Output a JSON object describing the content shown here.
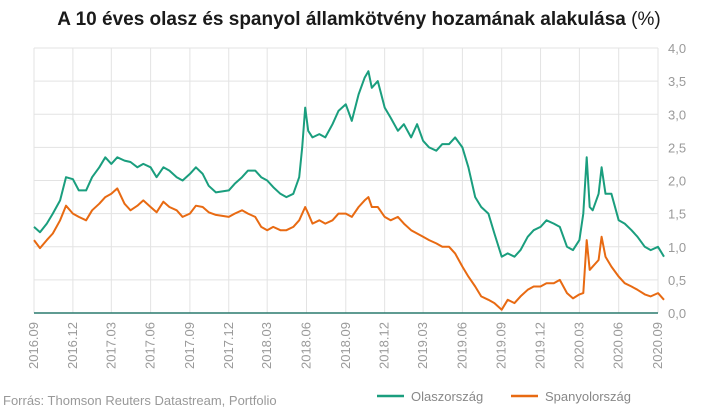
{
  "chart_data": {
    "type": "line",
    "title": "A 10 éves olasz és spanyol államkötvény hozamának alakulása",
    "title_unit": "(%)",
    "source": "Forrás: Thomson Reuters Datastream, Portfolio",
    "x_start": "2016.09",
    "x_end": "2020.09",
    "x_ticks": [
      "2016.09",
      "2016.12",
      "2017.03",
      "2017.06",
      "2017.09",
      "2017.12",
      "2018.03",
      "2018.06",
      "2018.09",
      "2018.12",
      "2019.03",
      "2019.06",
      "2019.09",
      "2019.12",
      "2020.03",
      "2020.06",
      "2020.09"
    ],
    "y_ticks": [
      "0,0",
      "0,5",
      "1,0",
      "1,5",
      "2,0",
      "2,5",
      "3,0",
      "3,5",
      "4,0"
    ],
    "ylim": [
      0,
      4
    ],
    "y_axis_position": "right",
    "grid": true,
    "legend_position": "bottom-right",
    "series": [
      {
        "name": "Olaszország",
        "color": "#1a9e7e",
        "points": [
          [
            "2016-09-01",
            1.3
          ],
          [
            "2016-09-15",
            1.22
          ],
          [
            "2016-10-01",
            1.35
          ],
          [
            "2016-10-15",
            1.5
          ],
          [
            "2016-11-01",
            1.7
          ],
          [
            "2016-11-15",
            2.05
          ],
          [
            "2016-12-01",
            2.02
          ],
          [
            "2016-12-15",
            1.85
          ],
          [
            "2017-01-01",
            1.85
          ],
          [
            "2017-01-15",
            2.05
          ],
          [
            "2017-02-01",
            2.2
          ],
          [
            "2017-02-15",
            2.35
          ],
          [
            "2017-03-01",
            2.25
          ],
          [
            "2017-03-15",
            2.35
          ],
          [
            "2017-04-01",
            2.3
          ],
          [
            "2017-04-15",
            2.28
          ],
          [
            "2017-05-01",
            2.2
          ],
          [
            "2017-05-15",
            2.25
          ],
          [
            "2017-06-01",
            2.2
          ],
          [
            "2017-06-15",
            2.05
          ],
          [
            "2017-07-01",
            2.2
          ],
          [
            "2017-07-15",
            2.15
          ],
          [
            "2017-08-01",
            2.05
          ],
          [
            "2017-08-15",
            2.0
          ],
          [
            "2017-09-01",
            2.1
          ],
          [
            "2017-09-15",
            2.2
          ],
          [
            "2017-10-01",
            2.1
          ],
          [
            "2017-10-15",
            1.92
          ],
          [
            "2017-11-01",
            1.82
          ],
          [
            "2017-12-01",
            1.85
          ],
          [
            "2017-12-15",
            1.95
          ],
          [
            "2018-01-01",
            2.05
          ],
          [
            "2018-01-15",
            2.15
          ],
          [
            "2018-02-01",
            2.15
          ],
          [
            "2018-02-15",
            2.05
          ],
          [
            "2018-03-01",
            2.0
          ],
          [
            "2018-03-15",
            1.9
          ],
          [
            "2018-04-01",
            1.8
          ],
          [
            "2018-04-15",
            1.75
          ],
          [
            "2018-05-01",
            1.8
          ],
          [
            "2018-05-15",
            2.05
          ],
          [
            "2018-05-22",
            2.5
          ],
          [
            "2018-05-29",
            3.1
          ],
          [
            "2018-06-05",
            2.75
          ],
          [
            "2018-06-15",
            2.65
          ],
          [
            "2018-07-01",
            2.7
          ],
          [
            "2018-07-15",
            2.65
          ],
          [
            "2018-08-01",
            2.85
          ],
          [
            "2018-08-15",
            3.05
          ],
          [
            "2018-09-01",
            3.15
          ],
          [
            "2018-09-15",
            2.9
          ],
          [
            "2018-10-01",
            3.3
          ],
          [
            "2018-10-15",
            3.55
          ],
          [
            "2018-10-24",
            3.65
          ],
          [
            "2018-11-01",
            3.4
          ],
          [
            "2018-11-15",
            3.5
          ],
          [
            "2018-12-01",
            3.1
          ],
          [
            "2018-12-15",
            2.95
          ],
          [
            "2019-01-01",
            2.75
          ],
          [
            "2019-01-15",
            2.85
          ],
          [
            "2019-02-01",
            2.65
          ],
          [
            "2019-02-15",
            2.85
          ],
          [
            "2019-03-01",
            2.6
          ],
          [
            "2019-03-15",
            2.5
          ],
          [
            "2019-04-01",
            2.45
          ],
          [
            "2019-04-15",
            2.55
          ],
          [
            "2019-05-01",
            2.55
          ],
          [
            "2019-05-15",
            2.65
          ],
          [
            "2019-06-01",
            2.5
          ],
          [
            "2019-06-15",
            2.2
          ],
          [
            "2019-07-01",
            1.75
          ],
          [
            "2019-07-15",
            1.6
          ],
          [
            "2019-08-01",
            1.5
          ],
          [
            "2019-08-15",
            1.2
          ],
          [
            "2019-09-01",
            0.85
          ],
          [
            "2019-09-15",
            0.9
          ],
          [
            "2019-10-01",
            0.85
          ],
          [
            "2019-10-15",
            0.95
          ],
          [
            "2019-11-01",
            1.15
          ],
          [
            "2019-11-15",
            1.25
          ],
          [
            "2019-12-01",
            1.3
          ],
          [
            "2019-12-15",
            1.4
          ],
          [
            "2020-01-01",
            1.35
          ],
          [
            "2020-01-15",
            1.3
          ],
          [
            "2020-02-01",
            1.0
          ],
          [
            "2020-02-15",
            0.95
          ],
          [
            "2020-03-01",
            1.1
          ],
          [
            "2020-03-10",
            1.5
          ],
          [
            "2020-03-18",
            2.35
          ],
          [
            "2020-03-25",
            1.6
          ],
          [
            "2020-04-01",
            1.55
          ],
          [
            "2020-04-15",
            1.8
          ],
          [
            "2020-04-22",
            2.2
          ],
          [
            "2020-05-01",
            1.8
          ],
          [
            "2020-05-15",
            1.8
          ],
          [
            "2020-06-01",
            1.4
          ],
          [
            "2020-06-15",
            1.35
          ],
          [
            "2020-07-01",
            1.25
          ],
          [
            "2020-07-15",
            1.15
          ],
          [
            "2020-08-01",
            1.0
          ],
          [
            "2020-08-15",
            0.95
          ],
          [
            "2020-09-01",
            1.0
          ],
          [
            "2020-09-15",
            0.85
          ]
        ]
      },
      {
        "name": "Spanyolország",
        "color": "#e86a12",
        "points": [
          [
            "2016-09-01",
            1.1
          ],
          [
            "2016-09-15",
            0.98
          ],
          [
            "2016-10-01",
            1.1
          ],
          [
            "2016-10-15",
            1.2
          ],
          [
            "2016-11-01",
            1.4
          ],
          [
            "2016-11-15",
            1.62
          ],
          [
            "2016-12-01",
            1.5
          ],
          [
            "2016-12-15",
            1.45
          ],
          [
            "2017-01-01",
            1.4
          ],
          [
            "2017-01-15",
            1.55
          ],
          [
            "2017-02-01",
            1.65
          ],
          [
            "2017-02-15",
            1.75
          ],
          [
            "2017-03-01",
            1.8
          ],
          [
            "2017-03-15",
            1.88
          ],
          [
            "2017-04-01",
            1.65
          ],
          [
            "2017-04-15",
            1.55
          ],
          [
            "2017-05-01",
            1.62
          ],
          [
            "2017-05-15",
            1.7
          ],
          [
            "2017-06-01",
            1.6
          ],
          [
            "2017-06-15",
            1.52
          ],
          [
            "2017-07-01",
            1.68
          ],
          [
            "2017-07-15",
            1.6
          ],
          [
            "2017-08-01",
            1.55
          ],
          [
            "2017-08-15",
            1.45
          ],
          [
            "2017-09-01",
            1.5
          ],
          [
            "2017-09-15",
            1.62
          ],
          [
            "2017-10-01",
            1.6
          ],
          [
            "2017-10-15",
            1.52
          ],
          [
            "2017-11-01",
            1.48
          ],
          [
            "2017-12-01",
            1.45
          ],
          [
            "2017-12-15",
            1.5
          ],
          [
            "2018-01-01",
            1.55
          ],
          [
            "2018-01-15",
            1.5
          ],
          [
            "2018-02-01",
            1.45
          ],
          [
            "2018-02-15",
            1.3
          ],
          [
            "2018-03-01",
            1.25
          ],
          [
            "2018-03-15",
            1.3
          ],
          [
            "2018-04-01",
            1.25
          ],
          [
            "2018-04-15",
            1.25
          ],
          [
            "2018-05-01",
            1.3
          ],
          [
            "2018-05-15",
            1.4
          ],
          [
            "2018-05-29",
            1.6
          ],
          [
            "2018-06-05",
            1.5
          ],
          [
            "2018-06-15",
            1.35
          ],
          [
            "2018-07-01",
            1.4
          ],
          [
            "2018-07-15",
            1.35
          ],
          [
            "2018-08-01",
            1.4
          ],
          [
            "2018-08-15",
            1.5
          ],
          [
            "2018-09-01",
            1.5
          ],
          [
            "2018-09-15",
            1.45
          ],
          [
            "2018-10-01",
            1.6
          ],
          [
            "2018-10-15",
            1.7
          ],
          [
            "2018-10-24",
            1.75
          ],
          [
            "2018-11-01",
            1.6
          ],
          [
            "2018-11-15",
            1.6
          ],
          [
            "2018-12-01",
            1.45
          ],
          [
            "2018-12-15",
            1.4
          ],
          [
            "2019-01-01",
            1.45
          ],
          [
            "2019-01-15",
            1.35
          ],
          [
            "2019-02-01",
            1.25
          ],
          [
            "2019-02-15",
            1.2
          ],
          [
            "2019-03-01",
            1.15
          ],
          [
            "2019-03-15",
            1.1
          ],
          [
            "2019-04-01",
            1.05
          ],
          [
            "2019-04-15",
            1.0
          ],
          [
            "2019-05-01",
            1.0
          ],
          [
            "2019-05-15",
            0.9
          ],
          [
            "2019-06-01",
            0.7
          ],
          [
            "2019-06-15",
            0.55
          ],
          [
            "2019-07-01",
            0.4
          ],
          [
            "2019-07-15",
            0.25
          ],
          [
            "2019-08-01",
            0.2
          ],
          [
            "2019-08-15",
            0.15
          ],
          [
            "2019-09-01",
            0.05
          ],
          [
            "2019-09-15",
            0.2
          ],
          [
            "2019-10-01",
            0.15
          ],
          [
            "2019-10-15",
            0.25
          ],
          [
            "2019-11-01",
            0.35
          ],
          [
            "2019-11-15",
            0.4
          ],
          [
            "2019-12-01",
            0.4
          ],
          [
            "2019-12-15",
            0.45
          ],
          [
            "2020-01-01",
            0.45
          ],
          [
            "2020-01-15",
            0.5
          ],
          [
            "2020-02-01",
            0.3
          ],
          [
            "2020-02-15",
            0.22
          ],
          [
            "2020-03-01",
            0.28
          ],
          [
            "2020-03-10",
            0.3
          ],
          [
            "2020-03-18",
            1.1
          ],
          [
            "2020-03-25",
            0.65
          ],
          [
            "2020-04-01",
            0.7
          ],
          [
            "2020-04-15",
            0.8
          ],
          [
            "2020-04-22",
            1.15
          ],
          [
            "2020-05-01",
            0.85
          ],
          [
            "2020-05-15",
            0.7
          ],
          [
            "2020-06-01",
            0.55
          ],
          [
            "2020-06-15",
            0.45
          ],
          [
            "2020-07-01",
            0.4
          ],
          [
            "2020-07-15",
            0.35
          ],
          [
            "2020-08-01",
            0.28
          ],
          [
            "2020-08-15",
            0.25
          ],
          [
            "2020-09-01",
            0.3
          ],
          [
            "2020-09-15",
            0.2
          ]
        ]
      }
    ]
  }
}
